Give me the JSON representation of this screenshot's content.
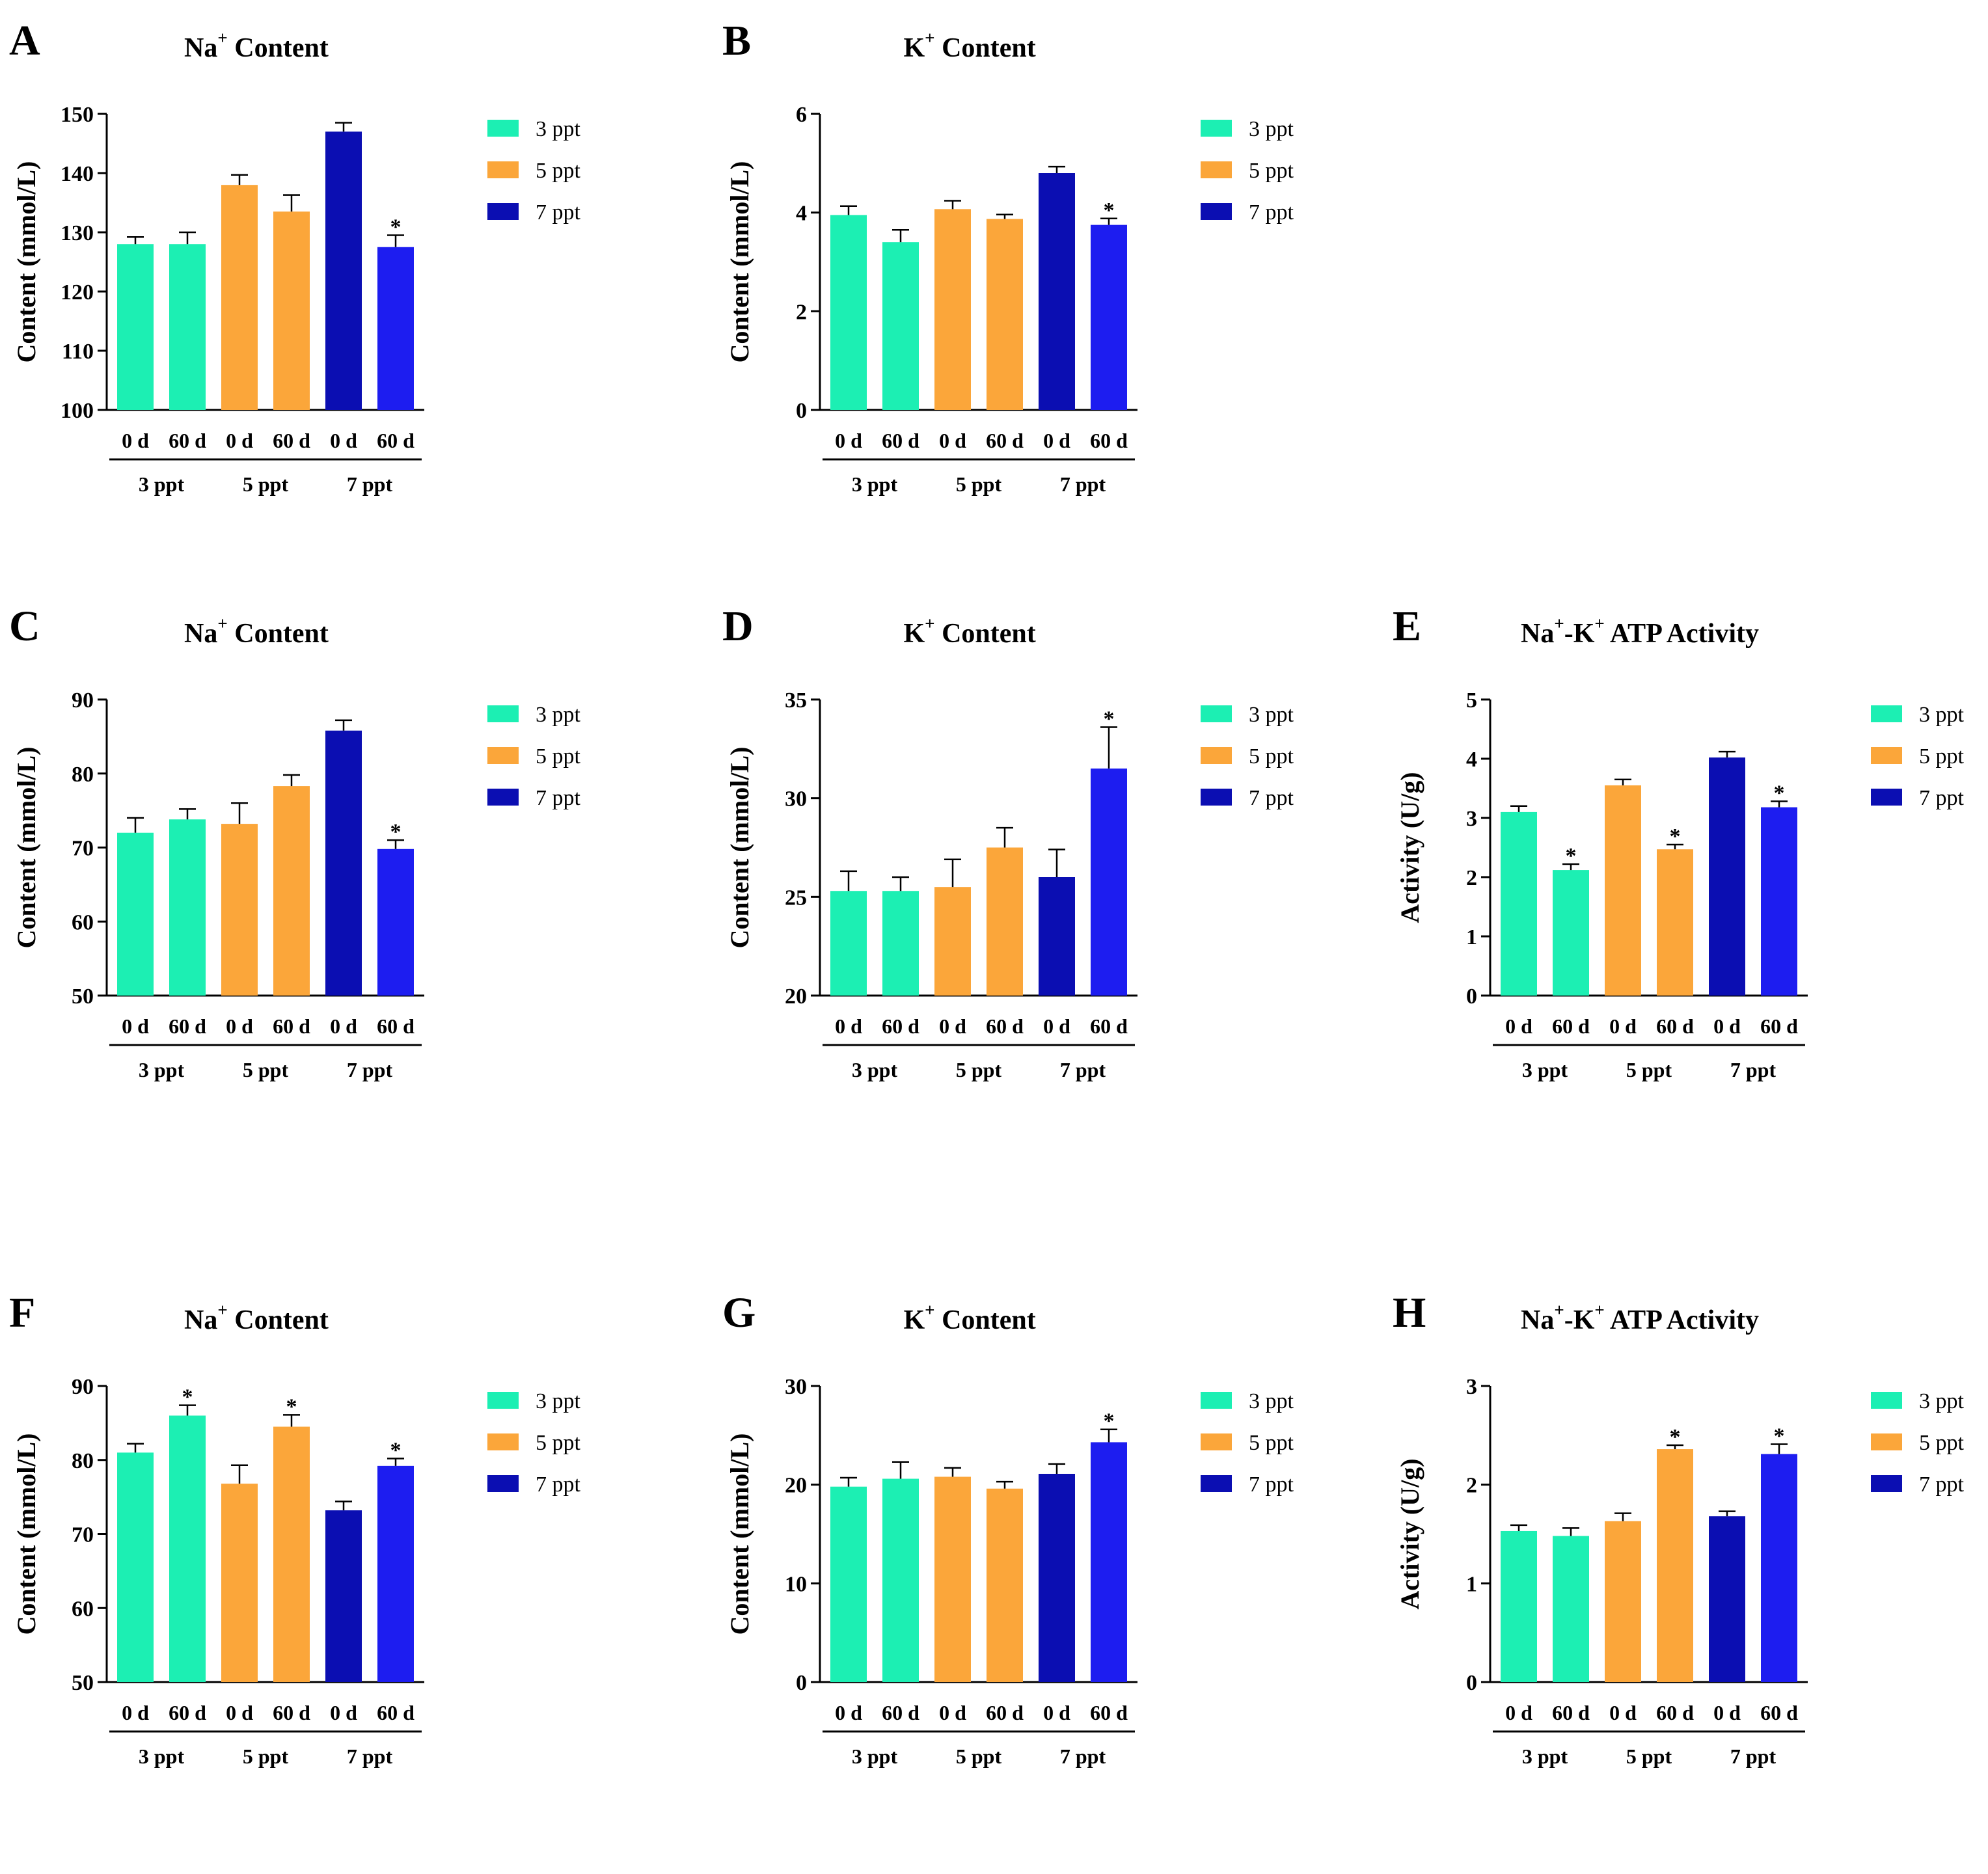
{
  "colors": {
    "3 ppt": "#1cefb3",
    "5 ppt": "#fba63a",
    "7 ppt 0 d": "#0b0eb2",
    "7 ppt 60 d": "#1d1df0"
  },
  "chart_data": [
    {
      "id": "A",
      "type": "bar",
      "title_base": "Na",
      "title_sup": "+",
      "title_rest": " Content",
      "ylabel": "Content (mmol/L)",
      "ylim": [
        100,
        150
      ],
      "ticks": [
        100,
        110,
        120,
        130,
        140,
        150
      ],
      "categories": [
        "0 d",
        "60 d",
        "0 d",
        "60 d",
        "0 d",
        "60 d"
      ],
      "groups": [
        "3 ppt",
        "5 ppt",
        "7 ppt"
      ],
      "values": [
        128,
        128,
        138,
        133.5,
        147,
        127.5
      ],
      "errors": [
        1.2,
        2,
        1.7,
        2.8,
        1.5,
        2
      ],
      "significant": [
        false,
        false,
        false,
        false,
        false,
        true
      ],
      "legend": [
        "3 ppt",
        "5 ppt",
        "7 ppt"
      ]
    },
    {
      "id": "B",
      "type": "bar",
      "title_base": "K",
      "title_sup": "+",
      "title_rest": " Content",
      "ylabel": "Content (mmol/L)",
      "ylim": [
        0,
        6
      ],
      "ticks": [
        0,
        2,
        4,
        6
      ],
      "categories": [
        "0 d",
        "60 d",
        "0 d",
        "60 d",
        "0 d",
        "60 d"
      ],
      "groups": [
        "3 ppt",
        "5 ppt",
        "7 ppt"
      ],
      "values": [
        3.95,
        3.4,
        4.07,
        3.87,
        4.8,
        3.75
      ],
      "errors": [
        0.18,
        0.25,
        0.17,
        0.09,
        0.13,
        0.13
      ],
      "significant": [
        false,
        false,
        false,
        false,
        false,
        true
      ],
      "legend": [
        "3 ppt",
        "5 ppt",
        "7 ppt"
      ]
    },
    {
      "id": "C",
      "type": "bar",
      "title_base": "Na",
      "title_sup": "+",
      "title_rest": " Content",
      "ylabel": "Content (mmol/L)",
      "ylim": [
        50,
        90
      ],
      "ticks": [
        50,
        60,
        70,
        80,
        90
      ],
      "categories": [
        "0 d",
        "60 d",
        "0 d",
        "60 d",
        "0 d",
        "60 d"
      ],
      "groups": [
        "3 ppt",
        "5 ppt",
        "7 ppt"
      ],
      "values": [
        72,
        73.8,
        73.2,
        78.3,
        85.8,
        69.8
      ],
      "errors": [
        2,
        1.4,
        2.8,
        1.5,
        1.4,
        1.2
      ],
      "significant": [
        false,
        false,
        false,
        false,
        false,
        true
      ],
      "legend": [
        "3 ppt",
        "5 ppt",
        "7 ppt"
      ]
    },
    {
      "id": "D",
      "type": "bar",
      "title_base": "K",
      "title_sup": "+",
      "title_rest": " Content",
      "ylabel": "Content (mmol/L)",
      "ylim": [
        20,
        35
      ],
      "ticks": [
        20,
        25,
        30,
        35
      ],
      "categories": [
        "0 d",
        "60 d",
        "0 d",
        "60 d",
        "0 d",
        "60 d"
      ],
      "groups": [
        "3 ppt",
        "5 ppt",
        "7 ppt"
      ],
      "values": [
        25.3,
        25.3,
        25.5,
        27.5,
        26,
        31.5
      ],
      "errors": [
        1,
        0.7,
        1.4,
        1,
        1.4,
        2.1
      ],
      "significant": [
        false,
        false,
        false,
        false,
        false,
        true
      ],
      "legend": [
        "3 ppt",
        "5 ppt",
        "7 ppt"
      ]
    },
    {
      "id": "E",
      "type": "bar",
      "title_base": "Na",
      "title_sup": "+",
      "title_mid": "-K",
      "title_sup2": "+",
      "title_rest": " ATP Activity",
      "ylabel": "Activity (U/g)",
      "ylim": [
        0,
        5
      ],
      "ticks": [
        0,
        1,
        2,
        3,
        4,
        5
      ],
      "categories": [
        "0 d",
        "60 d",
        "0 d",
        "60 d",
        "0 d",
        "60 d"
      ],
      "groups": [
        "3 ppt",
        "5 ppt",
        "7 ppt"
      ],
      "values": [
        3.1,
        2.12,
        3.55,
        2.47,
        4.02,
        3.18
      ],
      "errors": [
        0.1,
        0.1,
        0.1,
        0.08,
        0.1,
        0.1
      ],
      "significant": [
        false,
        true,
        false,
        true,
        false,
        true
      ],
      "legend": [
        "3 ppt",
        "5 ppt",
        "7 ppt"
      ]
    },
    {
      "id": "F",
      "type": "bar",
      "title_base": "Na",
      "title_sup": "+",
      "title_rest": " Content",
      "ylabel": "Content (mmol/L)",
      "ylim": [
        50,
        90
      ],
      "ticks": [
        50,
        60,
        70,
        80,
        90
      ],
      "categories": [
        "0 d",
        "60 d",
        "0 d",
        "60 d",
        "0 d",
        "60 d"
      ],
      "groups": [
        "3 ppt",
        "5 ppt",
        "7 ppt"
      ],
      "values": [
        81,
        86,
        76.8,
        84.5,
        73.2,
        79.2
      ],
      "errors": [
        1.2,
        1.4,
        2.5,
        1.6,
        1.2,
        1
      ],
      "significant": [
        false,
        true,
        false,
        true,
        false,
        true
      ],
      "legend": [
        "3 ppt",
        "5 ppt",
        "7 ppt"
      ]
    },
    {
      "id": "G",
      "type": "bar",
      "title_base": "K",
      "title_sup": "+",
      "title_rest": " Content",
      "ylabel": "Content (mmol/L)",
      "ylim": [
        0,
        30
      ],
      "ticks": [
        0,
        10,
        20,
        30
      ],
      "categories": [
        "0 d",
        "60 d",
        "0 d",
        "60 d",
        "0 d",
        "60 d"
      ],
      "groups": [
        "3 ppt",
        "5 ppt",
        "7 ppt"
      ],
      "values": [
        19.8,
        20.6,
        20.8,
        19.6,
        21.1,
        24.3
      ],
      "errors": [
        0.9,
        1.7,
        0.9,
        0.7,
        1,
        1.3
      ],
      "significant": [
        false,
        false,
        false,
        false,
        false,
        true
      ],
      "legend": [
        "3 ppt",
        "5 ppt",
        "7 ppt"
      ]
    },
    {
      "id": "H",
      "type": "bar",
      "title_base": "Na",
      "title_sup": "+",
      "title_mid": "-K",
      "title_sup2": "+",
      "title_rest": " ATP Activity",
      "ylabel": "Activity (U/g)",
      "ylim": [
        0,
        3
      ],
      "ticks": [
        0,
        1,
        2,
        3
      ],
      "categories": [
        "0 d",
        "60 d",
        "0 d",
        "60 d",
        "0 d",
        "60 d"
      ],
      "groups": [
        "3 ppt",
        "5 ppt",
        "7 ppt"
      ],
      "values": [
        1.53,
        1.48,
        1.63,
        2.36,
        1.68,
        2.31
      ],
      "errors": [
        0.06,
        0.08,
        0.08,
        0.04,
        0.05,
        0.1
      ],
      "significant": [
        false,
        false,
        false,
        true,
        false,
        true
      ],
      "legend": [
        "3 ppt",
        "5 ppt",
        "7 ppt"
      ]
    }
  ]
}
